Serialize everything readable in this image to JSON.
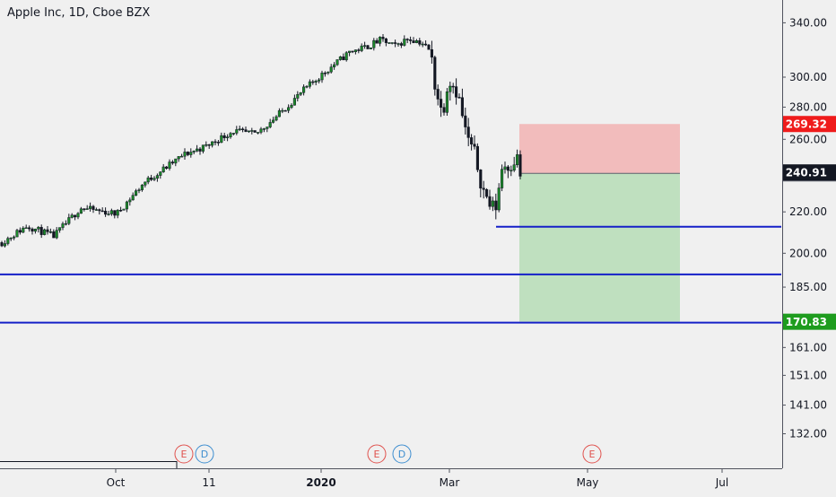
{
  "chart_data": {
    "type": "candlestick",
    "title": "Apple Inc, 1D, Cboe BZX",
    "symbol": "Apple Inc",
    "interval": "1D",
    "exchange": "Cboe BZX",
    "y_scale": "log",
    "y_ticks": [
      "340.00",
      "300.00",
      "280.00",
      "260.00",
      "240.00",
      "220.00",
      "200.00",
      "185.00",
      "170.00",
      "161.00",
      "151.00",
      "141.00",
      "132.00"
    ],
    "x_ticks": [
      "Oct",
      "11",
      "2020",
      "Mar",
      "May",
      "Jul"
    ],
    "price_labels": {
      "stop": "269.32",
      "last": "240.91",
      "entry": "240.39",
      "target": "170.83"
    },
    "position": {
      "type": "short",
      "entry": 240.39,
      "stop": 269.32,
      "target": 170.83
    },
    "horizontal_lines": [
      212.6,
      190.5,
      170.5
    ],
    "events": [
      "E",
      "D",
      "E",
      "D",
      "E"
    ],
    "colors": {
      "background": "#f0f0f0",
      "up": "#1b8a2a",
      "down": "#131722",
      "hline": "#1520c8",
      "stop_zone": "#f2bcbc",
      "target_zone": "#bfe0bf",
      "stop_label": "#ef1b1b",
      "last_label": "#131722",
      "entry_label": "#5d606b",
      "target_label": "#1e9c1e",
      "earnings": "#e0534f",
      "dividend": "#3e8ed0"
    }
  }
}
